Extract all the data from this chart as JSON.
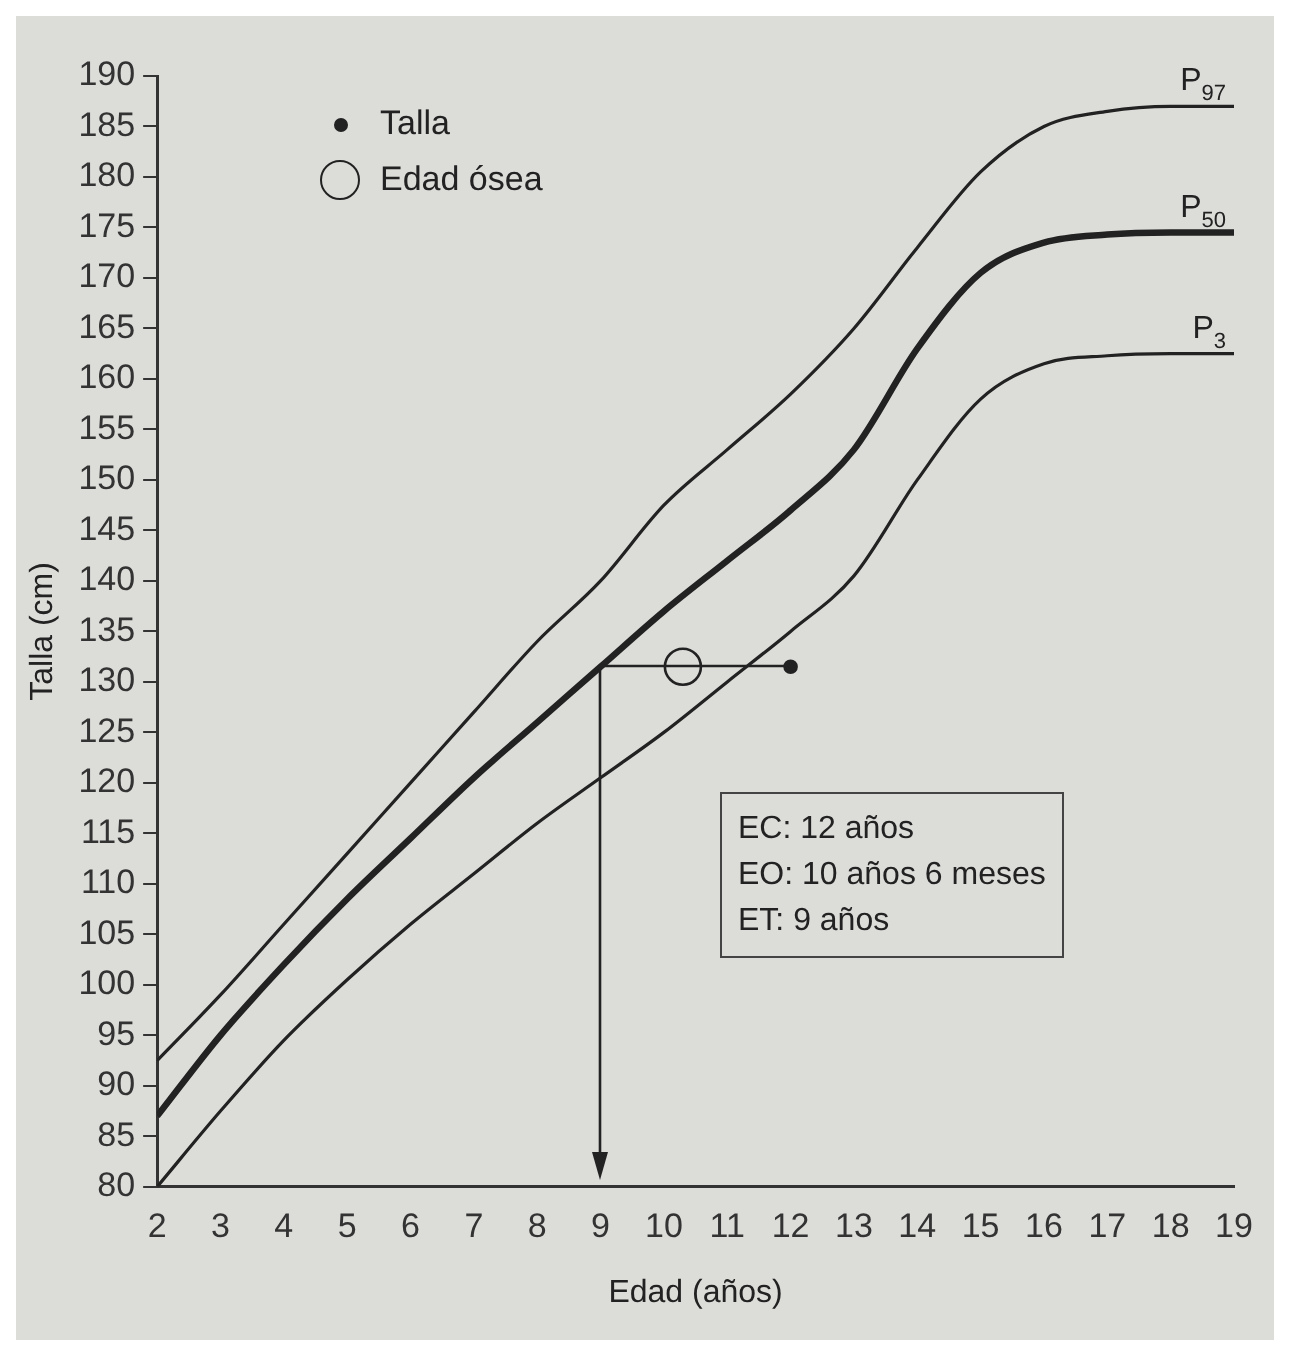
{
  "chart_data": {
    "type": "line",
    "xlabel": "Edad (años)",
    "ylabel": "Talla (cm)",
    "xlim": [
      2,
      19
    ],
    "xticks": [
      2,
      3,
      4,
      5,
      6,
      7,
      8,
      9,
      10,
      11,
      12,
      13,
      14,
      15,
      16,
      17,
      18,
      19
    ],
    "ylim": [
      80,
      190
    ],
    "yticks": [
      80,
      85,
      90,
      95,
      100,
      105,
      110,
      115,
      120,
      125,
      130,
      135,
      140,
      145,
      150,
      155,
      160,
      165,
      170,
      175,
      180,
      185,
      190
    ],
    "grid": false,
    "legend": "top left",
    "line_style": "solid",
    "x": [
      2,
      3,
      4,
      5,
      6,
      7,
      8,
      9,
      10,
      11,
      12,
      13,
      14,
      15,
      16,
      17,
      18,
      19
    ],
    "series": [
      {
        "name": "P$_{97}$",
        "color": "#222222",
        "marker": "none",
        "values": [
          92.5,
          99,
          106,
          113,
          120,
          127,
          134,
          140,
          147.5,
          153,
          158.5,
          165,
          173,
          180.5,
          185,
          186.5,
          187,
          187
        ]
      },
      {
        "name": "P$_{50}$",
        "color": "#222222",
        "marker": "none",
        "values": [
          87,
          95,
          102,
          108.5,
          114.5,
          120.5,
          126,
          131.5,
          137,
          142,
          147,
          153,
          163,
          170.5,
          173.5,
          174.3,
          174.5,
          174.5
        ]
      },
      {
        "name": "P$_{3}$",
        "color": "#222222",
        "marker": "none",
        "values": [
          80,
          87.5,
          94.5,
          100.5,
          106,
          111,
          116,
          120.5,
          125,
          130,
          135,
          140.5,
          150,
          158,
          161.5,
          162.3,
          162.5,
          162.5
        ]
      },
      {
        "type": "scatter",
        "name": "Talla",
        "color": "#222222",
        "marker": "circle",
        "x": [
          12
        ],
        "values": [
          131.5
        ]
      },
      {
        "type": "scatter",
        "name": "Edad ósea",
        "color": "#222222",
        "marker": "circle",
        "x": [
          10.3
        ],
        "values": [
          131.5
        ]
      }
    ],
    "annotations": [
      "EC: 12 años",
      "EO: 10 años 6 meses",
      "ET: 9 años"
    ]
  }
}
